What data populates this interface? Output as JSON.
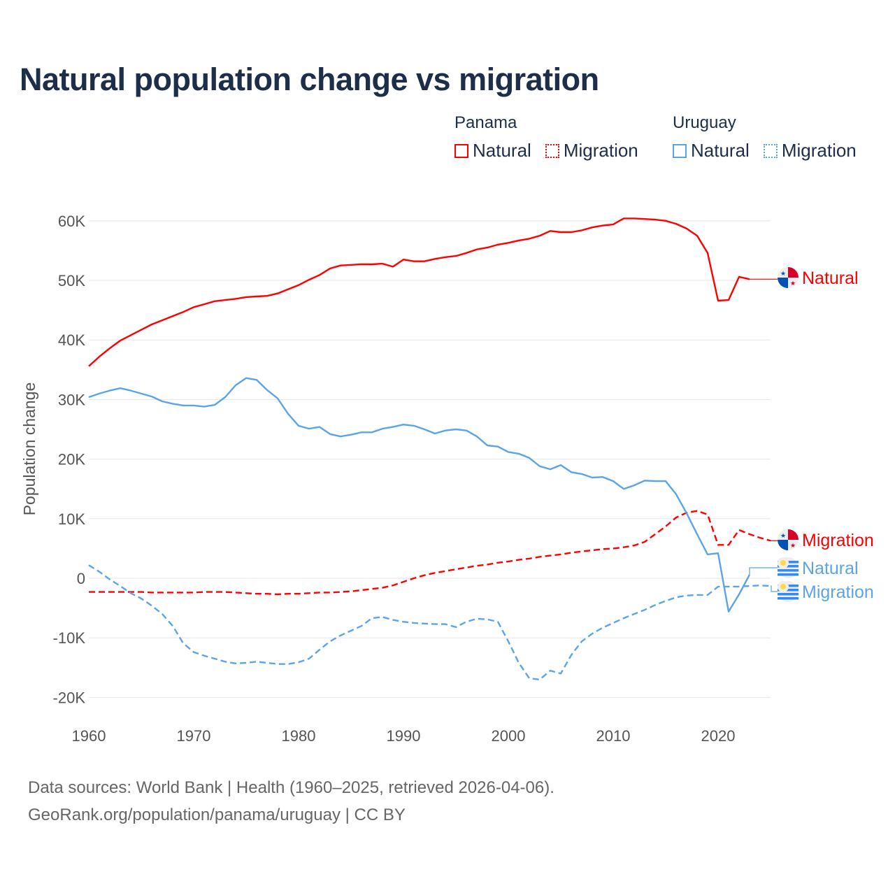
{
  "title": "Natural population change vs migration",
  "legend": {
    "groups": [
      {
        "name": "Panama",
        "items": [
          {
            "label": "Natural",
            "style": "solid"
          },
          {
            "label": "Migration",
            "style": "dotted"
          }
        ],
        "color": "#ff0000"
      },
      {
        "name": "Uruguay",
        "items": [
          {
            "label": "Natural",
            "style": "solid"
          },
          {
            "label": "Migration",
            "style": "dotted"
          }
        ],
        "color": "#5ba4ea"
      }
    ]
  },
  "footer": {
    "line1": "Data sources: World Bank | Health (1960–2025, retrieved 2026-04-06).",
    "line2": "GeoRank.org/population/panama/uruguay | CC BY"
  },
  "chart_data": {
    "type": "line",
    "title": "Natural population change vs migration",
    "xlabel": "",
    "ylabel": "Population change",
    "xlim": [
      1960,
      2025
    ],
    "ylim": [
      -20000,
      60000
    ],
    "x_ticks": [
      "1960",
      "1970",
      "1980",
      "1990",
      "2000",
      "2010",
      "2020"
    ],
    "y_ticks": [
      {
        "value": 60000,
        "label": "60K"
      },
      {
        "value": 50000,
        "label": "50K"
      },
      {
        "value": 40000,
        "label": "40K"
      },
      {
        "value": 30000,
        "label": "30K"
      },
      {
        "value": 20000,
        "label": "20K"
      },
      {
        "value": 10000,
        "label": "10K"
      },
      {
        "value": 0,
        "label": "0"
      },
      {
        "value": -10000,
        "label": "-10K"
      },
      {
        "value": -20000,
        "label": "-20K"
      }
    ],
    "grid": true,
    "legend_position": "top-right",
    "series": [
      {
        "name": "Panama Natural",
        "end_label": "Natural",
        "country": "Panama",
        "color": "#ff0000",
        "dash": false,
        "start_year": 1960,
        "values": [
          35.6,
          37.2,
          38.6,
          39.9,
          40.8,
          41.7,
          42.6,
          43.3,
          44.0,
          44.7,
          45.5,
          46.0,
          46.5,
          46.7,
          46.9,
          47.2,
          47.3,
          47.4,
          47.8,
          48.5,
          49.2,
          50.1,
          50.9,
          52.0,
          52.5,
          52.6,
          52.7,
          52.7,
          52.8,
          52.3,
          53.5,
          53.2,
          53.2,
          53.6,
          53.9,
          54.1,
          54.6,
          55.2,
          55.5,
          56.0,
          56.3,
          56.7,
          57.0,
          57.5,
          58.3,
          58.1,
          58.1,
          58.4,
          58.9,
          59.2,
          59.4,
          60.4,
          60.4,
          60.3,
          60.2,
          60.0,
          59.5,
          58.7,
          57.5,
          54.6,
          46.6,
          46.7,
          50.6,
          50.2
        ]
      },
      {
        "name": "Panama Migration",
        "end_label": "Migration",
        "country": "Panama",
        "color": "#ff0000",
        "dash": true,
        "start_year": 1960,
        "values": [
          -2.3,
          -2.3,
          -2.3,
          -2.3,
          -2.3,
          -2.3,
          -2.4,
          -2.4,
          -2.4,
          -2.4,
          -2.4,
          -2.3,
          -2.3,
          -2.3,
          -2.4,
          -2.5,
          -2.6,
          -2.6,
          -2.7,
          -2.6,
          -2.6,
          -2.5,
          -2.4,
          -2.4,
          -2.3,
          -2.2,
          -2.0,
          -1.8,
          -1.6,
          -1.2,
          -0.6,
          0.0,
          0.5,
          0.9,
          1.2,
          1.5,
          1.8,
          2.1,
          2.3,
          2.6,
          2.8,
          3.1,
          3.3,
          3.6,
          3.8,
          4.0,
          4.3,
          4.5,
          4.7,
          4.9,
          5.0,
          5.2,
          5.5,
          6.1,
          7.4,
          8.7,
          10.2,
          11.0,
          11.3,
          10.7,
          5.6,
          5.6,
          8.1,
          7.4,
          6.8,
          6.3
        ]
      },
      {
        "name": "Uruguay Natural",
        "end_label": "Natural",
        "country": "Uruguay",
        "color": "#5ba4ea",
        "dash": false,
        "start_year": 1960,
        "values": [
          30.4,
          31.0,
          31.5,
          31.9,
          31.5,
          31.0,
          30.5,
          29.7,
          29.3,
          29.0,
          29.0,
          28.8,
          29.1,
          30.4,
          32.4,
          33.6,
          33.3,
          31.6,
          30.2,
          27.6,
          25.6,
          25.1,
          25.4,
          24.2,
          23.8,
          24.1,
          24.5,
          24.5,
          25.1,
          25.4,
          25.8,
          25.6,
          25.0,
          24.3,
          24.8,
          25.0,
          24.8,
          23.8,
          22.3,
          22.1,
          21.2,
          20.9,
          20.2,
          18.8,
          18.3,
          19.0,
          17.8,
          17.5,
          16.9,
          17.0,
          16.3,
          15.0,
          15.6,
          16.4,
          16.3,
          16.3,
          14.1,
          10.9,
          7.4,
          4.0,
          4.2,
          -5.6,
          -2.7,
          0.6
        ]
      },
      {
        "name": "Uruguay Migration",
        "end_label": "Migration",
        "country": "Uruguay",
        "color": "#5ba4ea",
        "dash": true,
        "start_year": 1960,
        "values": [
          2.2,
          1.1,
          -0.2,
          -1.3,
          -2.5,
          -3.4,
          -4.6,
          -6.0,
          -8.0,
          -10.9,
          -12.4,
          -13.0,
          -13.5,
          -14.0,
          -14.3,
          -14.2,
          -14.0,
          -14.2,
          -14.4,
          -14.4,
          -14.1,
          -13.5,
          -12.0,
          -10.6,
          -9.6,
          -8.8,
          -8.0,
          -6.7,
          -6.5,
          -7.0,
          -7.3,
          -7.5,
          -7.6,
          -7.7,
          -7.7,
          -8.2,
          -7.3,
          -6.8,
          -6.9,
          -7.3,
          -10.6,
          -14.2,
          -16.8,
          -17.0,
          -15.5,
          -16.0,
          -12.9,
          -10.6,
          -9.3,
          -8.3,
          -7.5,
          -6.7,
          -6.0,
          -5.3,
          -4.5,
          -3.8,
          -3.2,
          -2.9,
          -2.8,
          -2.8,
          -1.4,
          -1.4,
          -1.4,
          -1.3,
          -1.2,
          -1.3
        ]
      }
    ],
    "value_unit": "thousands"
  }
}
